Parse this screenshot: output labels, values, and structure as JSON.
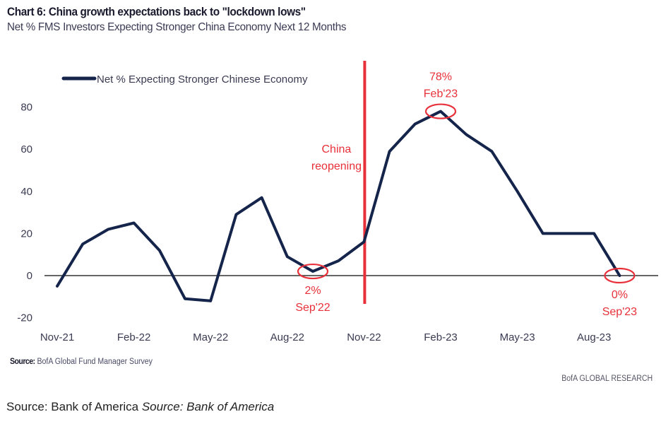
{
  "header": {
    "title": "Chart 6: China growth expectations back to \"lockdown lows\"",
    "subtitle": "Net % FMS Investors Expecting Stronger China Economy Next 12 Months"
  },
  "footer": {
    "source_label": "Source:",
    "source_text": "BofA Global Fund Manager Survey",
    "brand": "BofA GLOBAL RESEARCH",
    "caption_plain": "Source: Bank of America",
    "caption_italic": "Source: Bank of America"
  },
  "colors": {
    "series": "#14244a",
    "annotation": "#e8303a",
    "zero_line": "#333333"
  },
  "chart_data": {
    "type": "line",
    "title": "Chart 6: China growth expectations back to \"lockdown lows\"",
    "subtitle": "Net % FMS Investors Expecting Stronger China Economy Next 12 Months",
    "xlabel": "",
    "ylabel": "",
    "ylim": [
      -20,
      80
    ],
    "yticks": [
      80,
      60,
      40,
      20,
      0,
      -20
    ],
    "grid": false,
    "legend_position": "top-left",
    "x": [
      "Nov-21",
      "Dec-21",
      "Jan-22",
      "Feb-22",
      "Mar-22",
      "Apr-22",
      "May-22",
      "Jun-22",
      "Jul-22",
      "Aug-22",
      "Sep-22",
      "Oct-22",
      "Nov-22",
      "Dec-22",
      "Jan-23",
      "Feb-23",
      "Mar-23",
      "Apr-23",
      "May-23",
      "Jun-23",
      "Jul-23",
      "Aug-23",
      "Sep-23"
    ],
    "xtick_labels": [
      "Nov-21",
      "Feb-22",
      "May-22",
      "Aug-22",
      "Nov-22",
      "Feb-23",
      "May-23",
      "Aug-23"
    ],
    "series": [
      {
        "name": "Net % Expecting Stronger Chinese Economy",
        "values": [
          -5,
          15,
          22,
          25,
          12,
          -11,
          -12,
          29,
          37,
          9,
          2,
          7,
          16,
          59,
          72,
          78,
          67,
          59,
          40,
          20,
          20,
          20,
          0
        ]
      }
    ],
    "annotations": [
      {
        "type": "vline",
        "x": "Nov-22",
        "text_lines": [
          "China",
          "reopening"
        ]
      },
      {
        "type": "circle",
        "x": "Sep-22",
        "value": 2,
        "text_lines": [
          "2%",
          "Sep'22"
        ],
        "position": "below"
      },
      {
        "type": "circle",
        "x": "Feb-23",
        "value": 78,
        "text_lines": [
          "78%",
          "Feb'23"
        ],
        "position": "above"
      },
      {
        "type": "circle",
        "x": "Sep-23",
        "value": 0,
        "text_lines": [
          "0%",
          "Sep'23"
        ],
        "position": "below"
      }
    ]
  }
}
